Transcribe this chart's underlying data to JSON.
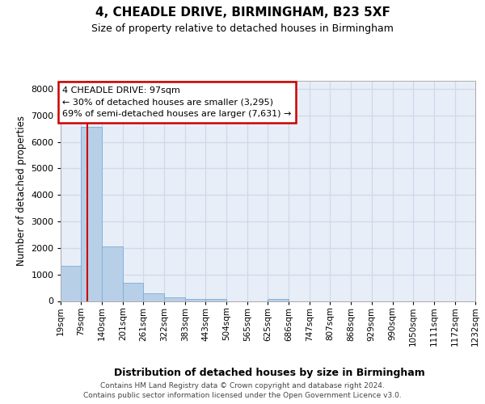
{
  "title1": "4, CHEADLE DRIVE, BIRMINGHAM, B23 5XF",
  "title2": "Size of property relative to detached houses in Birmingham",
  "xlabel": "Distribution of detached houses by size in Birmingham",
  "ylabel": "Number of detached properties",
  "property_size_sqm": 97,
  "annotation_line1": "4 CHEADLE DRIVE: 97sqm",
  "annotation_line2": "← 30% of detached houses are smaller (3,295)",
  "annotation_line3": "69% of semi-detached houses are larger (7,631) →",
  "bin_edges": [
    19,
    79,
    140,
    201,
    261,
    322,
    383,
    443,
    504,
    565,
    625,
    686,
    747,
    807,
    868,
    929,
    990,
    1050,
    1111,
    1172,
    1232
  ],
  "bar_heights": [
    1310,
    6560,
    2070,
    680,
    290,
    150,
    90,
    70,
    0,
    0,
    90,
    0,
    0,
    0,
    0,
    0,
    0,
    0,
    0,
    0
  ],
  "bar_color": "#b8cfe8",
  "bar_edgecolor": "#7aadd4",
  "vline_color": "#cc0000",
  "annot_edge_color": "#cc0000",
  "grid_color": "#d0d8ea",
  "bg_color": "#e8eef8",
  "footer_text": "Contains HM Land Registry data © Crown copyright and database right 2024.\nContains public sector information licensed under the Open Government Licence v3.0.",
  "ylim": [
    0,
    8300
  ],
  "yticks": [
    0,
    1000,
    2000,
    3000,
    4000,
    5000,
    6000,
    7000,
    8000
  ]
}
